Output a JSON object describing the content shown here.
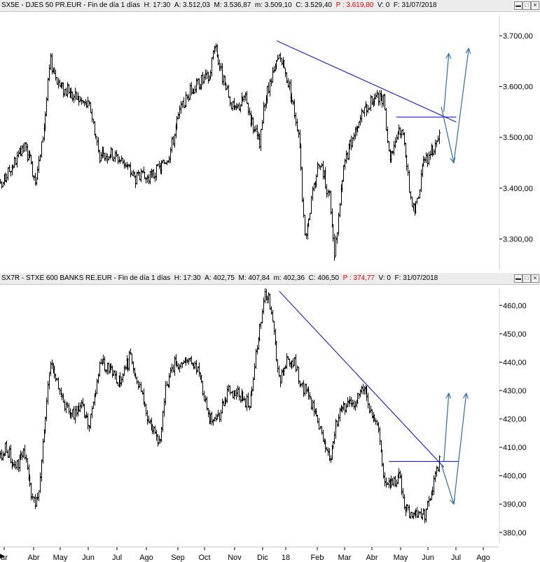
{
  "panes": [
    {
      "header": {
        "symbol": "SX5E - DJES 50 PR.EUR - Fin de día 1 días",
        "h": "H: 17:30",
        "a": "A: 3.512,03",
        "m": "M: 3.536,87",
        "mn": "m: 3.509,10",
        "c": "C: 3.529,40",
        "p": "P : 3.619,80",
        "v": "V: 0",
        "f": "F: 31/07/2018"
      }
    },
    {
      "header": {
        "symbol": "SX7R - STXE 600 BANKS RE.EUR - Fin de día 1 días",
        "h": "H: 17:30",
        "a": "A: 402,75",
        "m": "M: 407,84",
        "mn": "m: 402,36",
        "c": "C: 406,50",
        "p": "P : 374,77",
        "v": "V: 0",
        "f": "F: 31/07/2018"
      }
    }
  ],
  "window_buttons": [
    "▬",
    "□",
    "✕"
  ],
  "x_axis_labels": [
    "ar",
    "Abr",
    "May",
    "Jun",
    "Jul",
    "Ago",
    "Sep",
    "Oct",
    "Nov",
    "Dic",
    "18",
    "Feb",
    "Mar",
    "Abr",
    "May",
    "Jun",
    "Jul",
    "Ago"
  ],
  "scroll_arrow": "▶",
  "colors": {
    "bars": "#000000",
    "trendline": "#0000cc",
    "projection": "#2e6da4",
    "header_bg": "#ececec",
    "p_value": "#ee0000"
  },
  "chart_data": [
    {
      "type": "ohlc",
      "name": "SX5E - DJES 50 PR.EUR",
      "y_ticks": [
        "3.300,00",
        "3.400,00",
        "3.500,00",
        "3.600,00",
        "3.700,00"
      ],
      "ylim": [
        3240,
        3740
      ],
      "x_range": [
        0,
        100
      ],
      "price_path": [
        [
          0,
          3400
        ],
        [
          2,
          3440
        ],
        [
          5,
          3480
        ],
        [
          7,
          3420
        ],
        [
          8,
          3460
        ],
        [
          9,
          3540
        ],
        [
          10,
          3650
        ],
        [
          12,
          3600
        ],
        [
          15,
          3580
        ],
        [
          18,
          3560
        ],
        [
          20,
          3460
        ],
        [
          22,
          3470
        ],
        [
          25,
          3450
        ],
        [
          27,
          3420
        ],
        [
          30,
          3420
        ],
        [
          32,
          3440
        ],
        [
          34,
          3470
        ],
        [
          36,
          3550
        ],
        [
          38,
          3590
        ],
        [
          40,
          3610
        ],
        [
          42,
          3620
        ],
        [
          43,
          3690
        ],
        [
          44,
          3640
        ],
        [
          45,
          3600
        ],
        [
          47,
          3550
        ],
        [
          49,
          3580
        ],
        [
          52,
          3480
        ],
        [
          53,
          3570
        ],
        [
          56,
          3660
        ],
        [
          58,
          3600
        ],
        [
          60,
          3500
        ],
        [
          61,
          3300
        ],
        [
          64,
          3460
        ],
        [
          66,
          3380
        ],
        [
          67,
          3270
        ],
        [
          69,
          3450
        ],
        [
          72,
          3540
        ],
        [
          75,
          3580
        ],
        [
          77,
          3570
        ],
        [
          78,
          3460
        ],
        [
          80,
          3520
        ],
        [
          81,
          3500
        ],
        [
          82,
          3400
        ],
        [
          83,
          3350
        ],
        [
          85,
          3450
        ],
        [
          87,
          3480
        ],
        [
          88,
          3520
        ]
      ],
      "trendlines": [
        {
          "from": [
            55.5,
            3690
          ],
          "to": [
            91.5,
            3530
          ]
        },
        {
          "from": [
            79.5,
            3540
          ],
          "to": [
            91.5,
            3540
          ]
        }
      ],
      "projections": [
        {
          "from": [
            89,
            3550
          ],
          "to": [
            90,
            3665
          ]
        },
        {
          "from": [
            88.5,
            3560
          ],
          "to": [
            91,
            3450
          ]
        },
        {
          "from": [
            91,
            3450
          ],
          "to": [
            94,
            3675
          ]
        }
      ]
    },
    {
      "type": "ohlc",
      "name": "SX7R - STXE 600 BANKS RE.EUR",
      "y_ticks": [
        "380,00",
        "390,00",
        "400,00",
        "410,00",
        "420,00",
        "430,00",
        "440,00",
        "450,00",
        "460,00"
      ],
      "ylim": [
        376,
        466
      ],
      "x_range": [
        0,
        100
      ],
      "price_path": [
        [
          0,
          406
        ],
        [
          1,
          410
        ],
        [
          3,
          403
        ],
        [
          5,
          408
        ],
        [
          6,
          396
        ],
        [
          7,
          390
        ],
        [
          8,
          398
        ],
        [
          9,
          420
        ],
        [
          10,
          440
        ],
        [
          12,
          430
        ],
        [
          14,
          420
        ],
        [
          16,
          425
        ],
        [
          18,
          418
        ],
        [
          20,
          440
        ],
        [
          22,
          438
        ],
        [
          24,
          432
        ],
        [
          26,
          442
        ],
        [
          28,
          432
        ],
        [
          30,
          418
        ],
        [
          32,
          412
        ],
        [
          33,
          430
        ],
        [
          35,
          440
        ],
        [
          37,
          438
        ],
        [
          38,
          441
        ],
        [
          40,
          436
        ],
        [
          42,
          420
        ],
        [
          44,
          422
        ],
        [
          46,
          430
        ],
        [
          48,
          428
        ],
        [
          50,
          425
        ],
        [
          51,
          440
        ],
        [
          52,
          452
        ],
        [
          53,
          463
        ],
        [
          54,
          462
        ],
        [
          56,
          432
        ],
        [
          57,
          440
        ],
        [
          59,
          441
        ],
        [
          60,
          432
        ],
        [
          62,
          428
        ],
        [
          64,
          418
        ],
        [
          66,
          405
        ],
        [
          67,
          416
        ],
        [
          68,
          422
        ],
        [
          70,
          425
        ],
        [
          72,
          428
        ],
        [
          73,
          430
        ],
        [
          74,
          422
        ],
        [
          76,
          416
        ],
        [
          77,
          400
        ],
        [
          78,
          396
        ],
        [
          80,
          400
        ],
        [
          81,
          390
        ],
        [
          82,
          386
        ],
        [
          83,
          385
        ],
        [
          84,
          388
        ],
        [
          85,
          386
        ],
        [
          86,
          390
        ],
        [
          87,
          398
        ],
        [
          88,
          405
        ]
      ],
      "trendlines": [
        {
          "from": [
            56,
            465
          ],
          "to": [
            89,
            403
          ]
        },
        {
          "from": [
            78,
            405
          ],
          "to": [
            92,
            405
          ]
        }
      ],
      "projections": [
        {
          "from": [
            89,
            405
          ],
          "to": [
            90,
            429
          ]
        },
        {
          "from": [
            88.5,
            404
          ],
          "to": [
            91,
            390
          ]
        },
        {
          "from": [
            91,
            390
          ],
          "to": [
            93.5,
            429
          ]
        }
      ]
    }
  ]
}
